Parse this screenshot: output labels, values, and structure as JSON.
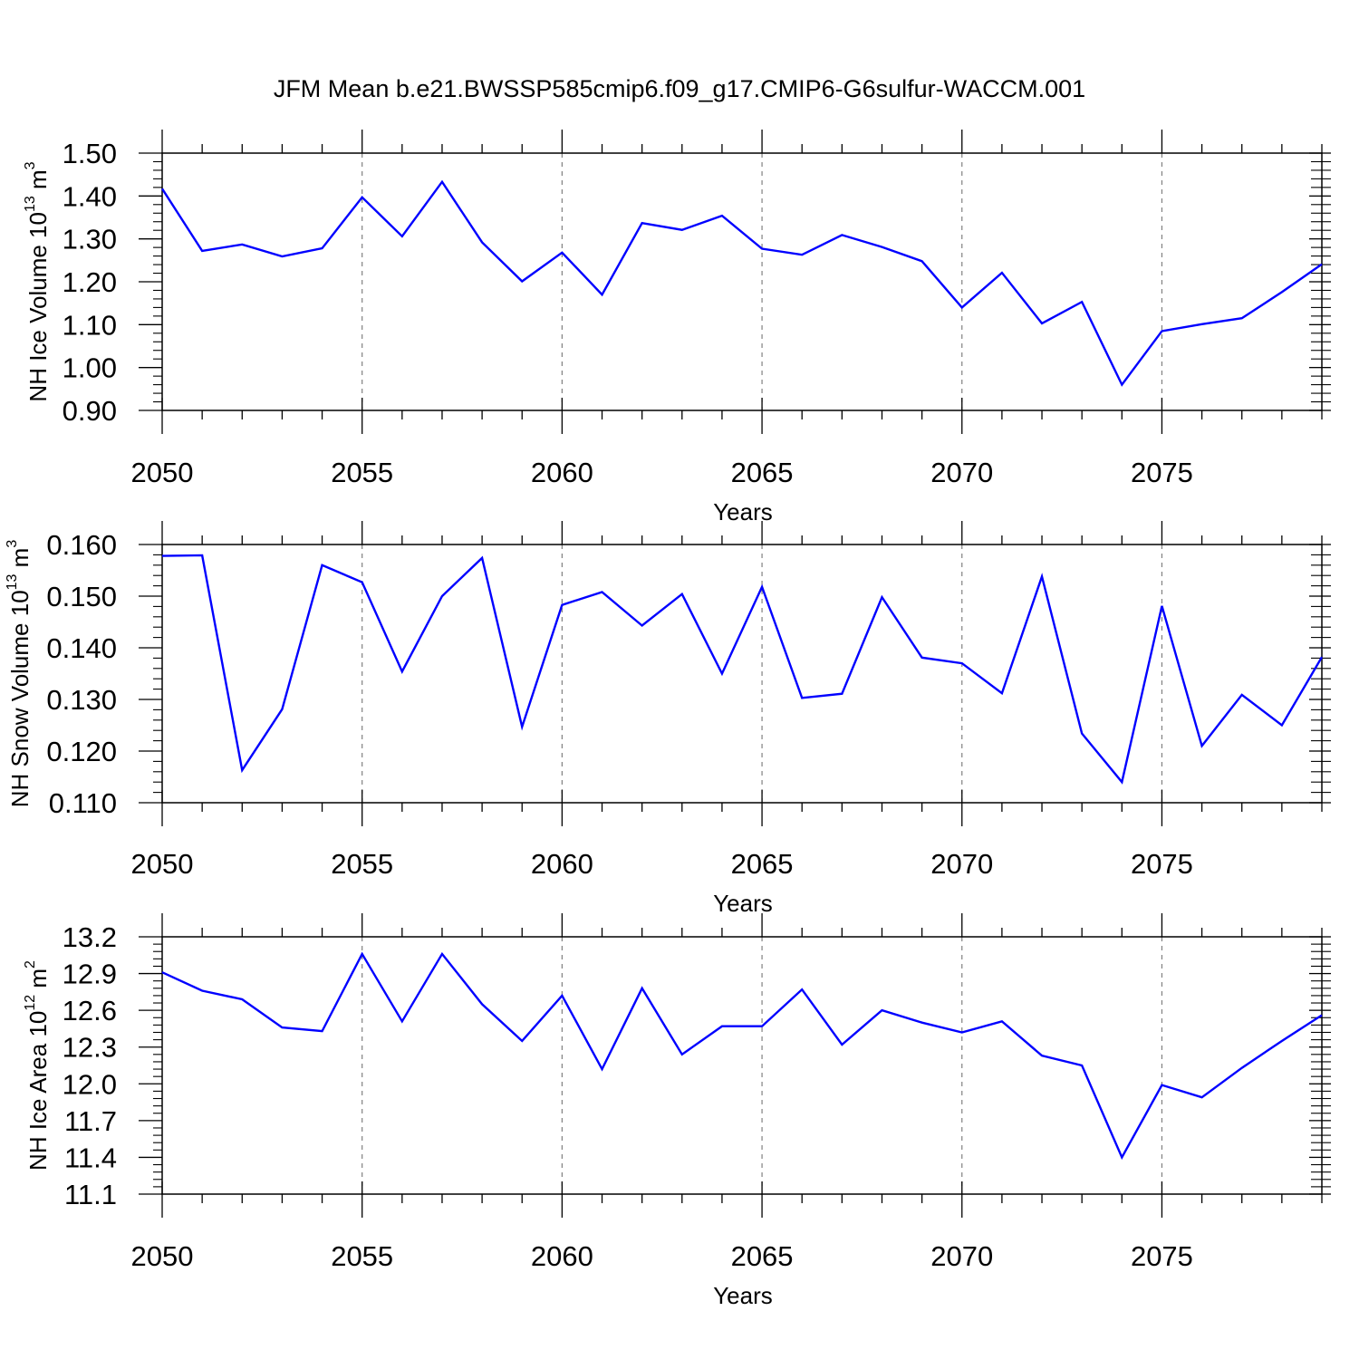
{
  "title": "JFM Mean b.e21.BWSSP585cmip6.f09_g17.CMIP6-G6sulfur-WACCM.001",
  "colors": {
    "line": "#0000ff",
    "axis": "#000000",
    "grid": "#808080"
  },
  "chart_data": [
    {
      "type": "line",
      "name": "ice-volume",
      "ylabel": {
        "text": "NH Ice Volume 10",
        "exp": "13",
        "unit": " m",
        "unit_exp": "3"
      },
      "xlabel": "Years",
      "xlim": [
        2050,
        2079
      ],
      "ylim": [
        0.9,
        1.5
      ],
      "yticks": [
        "0.90",
        "1.00",
        "1.10",
        "1.20",
        "1.30",
        "1.40",
        "1.50"
      ],
      "xticks": [
        "2050",
        "2055",
        "2060",
        "2065",
        "2070",
        "2075"
      ],
      "grid": "vertical dashed at major x ticks",
      "x": [
        2050,
        2051,
        2052,
        2053,
        2054,
        2055,
        2056,
        2057,
        2058,
        2059,
        2060,
        2061,
        2062,
        2063,
        2064,
        2065,
        2066,
        2067,
        2068,
        2069,
        2070,
        2071,
        2072,
        2073,
        2074,
        2075,
        2076,
        2077,
        2078,
        2079
      ],
      "values": [
        1.417,
        1.272,
        1.287,
        1.259,
        1.278,
        1.397,
        1.306,
        1.433,
        1.292,
        1.201,
        1.268,
        1.17,
        1.337,
        1.321,
        1.354,
        1.277,
        1.263,
        1.309,
        1.281,
        1.248,
        1.14,
        1.221,
        1.103,
        1.153,
        0.96,
        1.085,
        1.101,
        1.115,
        1.176,
        1.241
      ]
    },
    {
      "type": "line",
      "name": "snow-volume",
      "ylabel": {
        "text": "NH Snow Volume 10",
        "exp": "13",
        "unit": " m",
        "unit_exp": "3"
      },
      "xlabel": "Years",
      "xlim": [
        2050,
        2079
      ],
      "ylim": [
        0.11,
        0.16
      ],
      "yticks": [
        "0.110",
        "0.120",
        "0.130",
        "0.140",
        "0.150",
        "0.160"
      ],
      "xticks": [
        "2050",
        "2055",
        "2060",
        "2065",
        "2070",
        "2075"
      ],
      "grid": "vertical dashed at major x ticks",
      "x": [
        2050,
        2051,
        2052,
        2053,
        2054,
        2055,
        2056,
        2057,
        2058,
        2059,
        2060,
        2061,
        2062,
        2063,
        2064,
        2065,
        2066,
        2067,
        2068,
        2069,
        2070,
        2071,
        2072,
        2073,
        2074,
        2075,
        2076,
        2077,
        2078,
        2079
      ],
      "values": [
        0.1578,
        0.1579,
        0.1163,
        0.1281,
        0.156,
        0.1527,
        0.1354,
        0.15,
        0.1574,
        0.1247,
        0.1483,
        0.1508,
        0.1443,
        0.1504,
        0.135,
        0.1518,
        0.1303,
        0.1311,
        0.1498,
        0.1381,
        0.137,
        0.1312,
        0.1538,
        0.1234,
        0.114,
        0.1481,
        0.121,
        0.1309,
        0.125,
        0.1382
      ]
    },
    {
      "type": "line",
      "name": "ice-area",
      "ylabel": {
        "text": "NH Ice Area 10",
        "exp": "12",
        "unit": " m",
        "unit_exp": "2"
      },
      "xlabel": "Years",
      "xlim": [
        2050,
        2079
      ],
      "ylim": [
        11.1,
        13.2
      ],
      "yticks": [
        "11.1",
        "11.4",
        "11.7",
        "12.0",
        "12.3",
        "12.6",
        "12.9",
        "13.2"
      ],
      "xticks": [
        "2050",
        "2055",
        "2060",
        "2065",
        "2070",
        "2075"
      ],
      "grid": "vertical dashed at major x ticks",
      "x": [
        2050,
        2051,
        2052,
        2053,
        2054,
        2055,
        2056,
        2057,
        2058,
        2059,
        2060,
        2061,
        2062,
        2063,
        2064,
        2065,
        2066,
        2067,
        2068,
        2069,
        2070,
        2071,
        2072,
        2073,
        2074,
        2075,
        2076,
        2077,
        2078,
        2079
      ],
      "values": [
        12.91,
        12.76,
        12.69,
        12.46,
        12.43,
        13.06,
        12.51,
        13.06,
        12.65,
        12.35,
        12.72,
        12.12,
        12.78,
        12.24,
        12.47,
        12.47,
        12.77,
        12.32,
        12.6,
        12.5,
        12.42,
        12.51,
        12.23,
        12.15,
        11.4,
        11.99,
        11.89,
        12.13,
        12.35,
        12.56
      ]
    }
  ]
}
